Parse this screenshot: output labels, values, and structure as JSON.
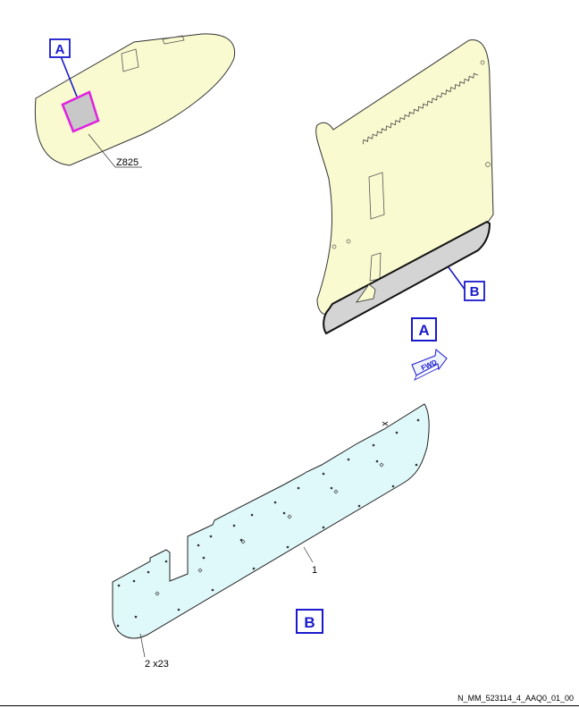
{
  "callouts": {
    "view_a_top": "A",
    "view_b_panel": "B",
    "view_a_arrow": "A",
    "view_b_bottom": "B"
  },
  "labels": {
    "zone": "Z825",
    "item_panel": "1",
    "item_screws": "2 x23",
    "fwd_arrow": "FWD"
  },
  "figure_id": "N_MM_523114_4_AAQ0_01_00",
  "colors": {
    "fuselage_fill": "#fafad0",
    "door_fill": "#fafad0",
    "lining_fill": "#d4d4d4",
    "panel_fill": "#dff8fa",
    "highlight_magenta": "#e020e0",
    "callout_blue": "#1a1acc"
  }
}
